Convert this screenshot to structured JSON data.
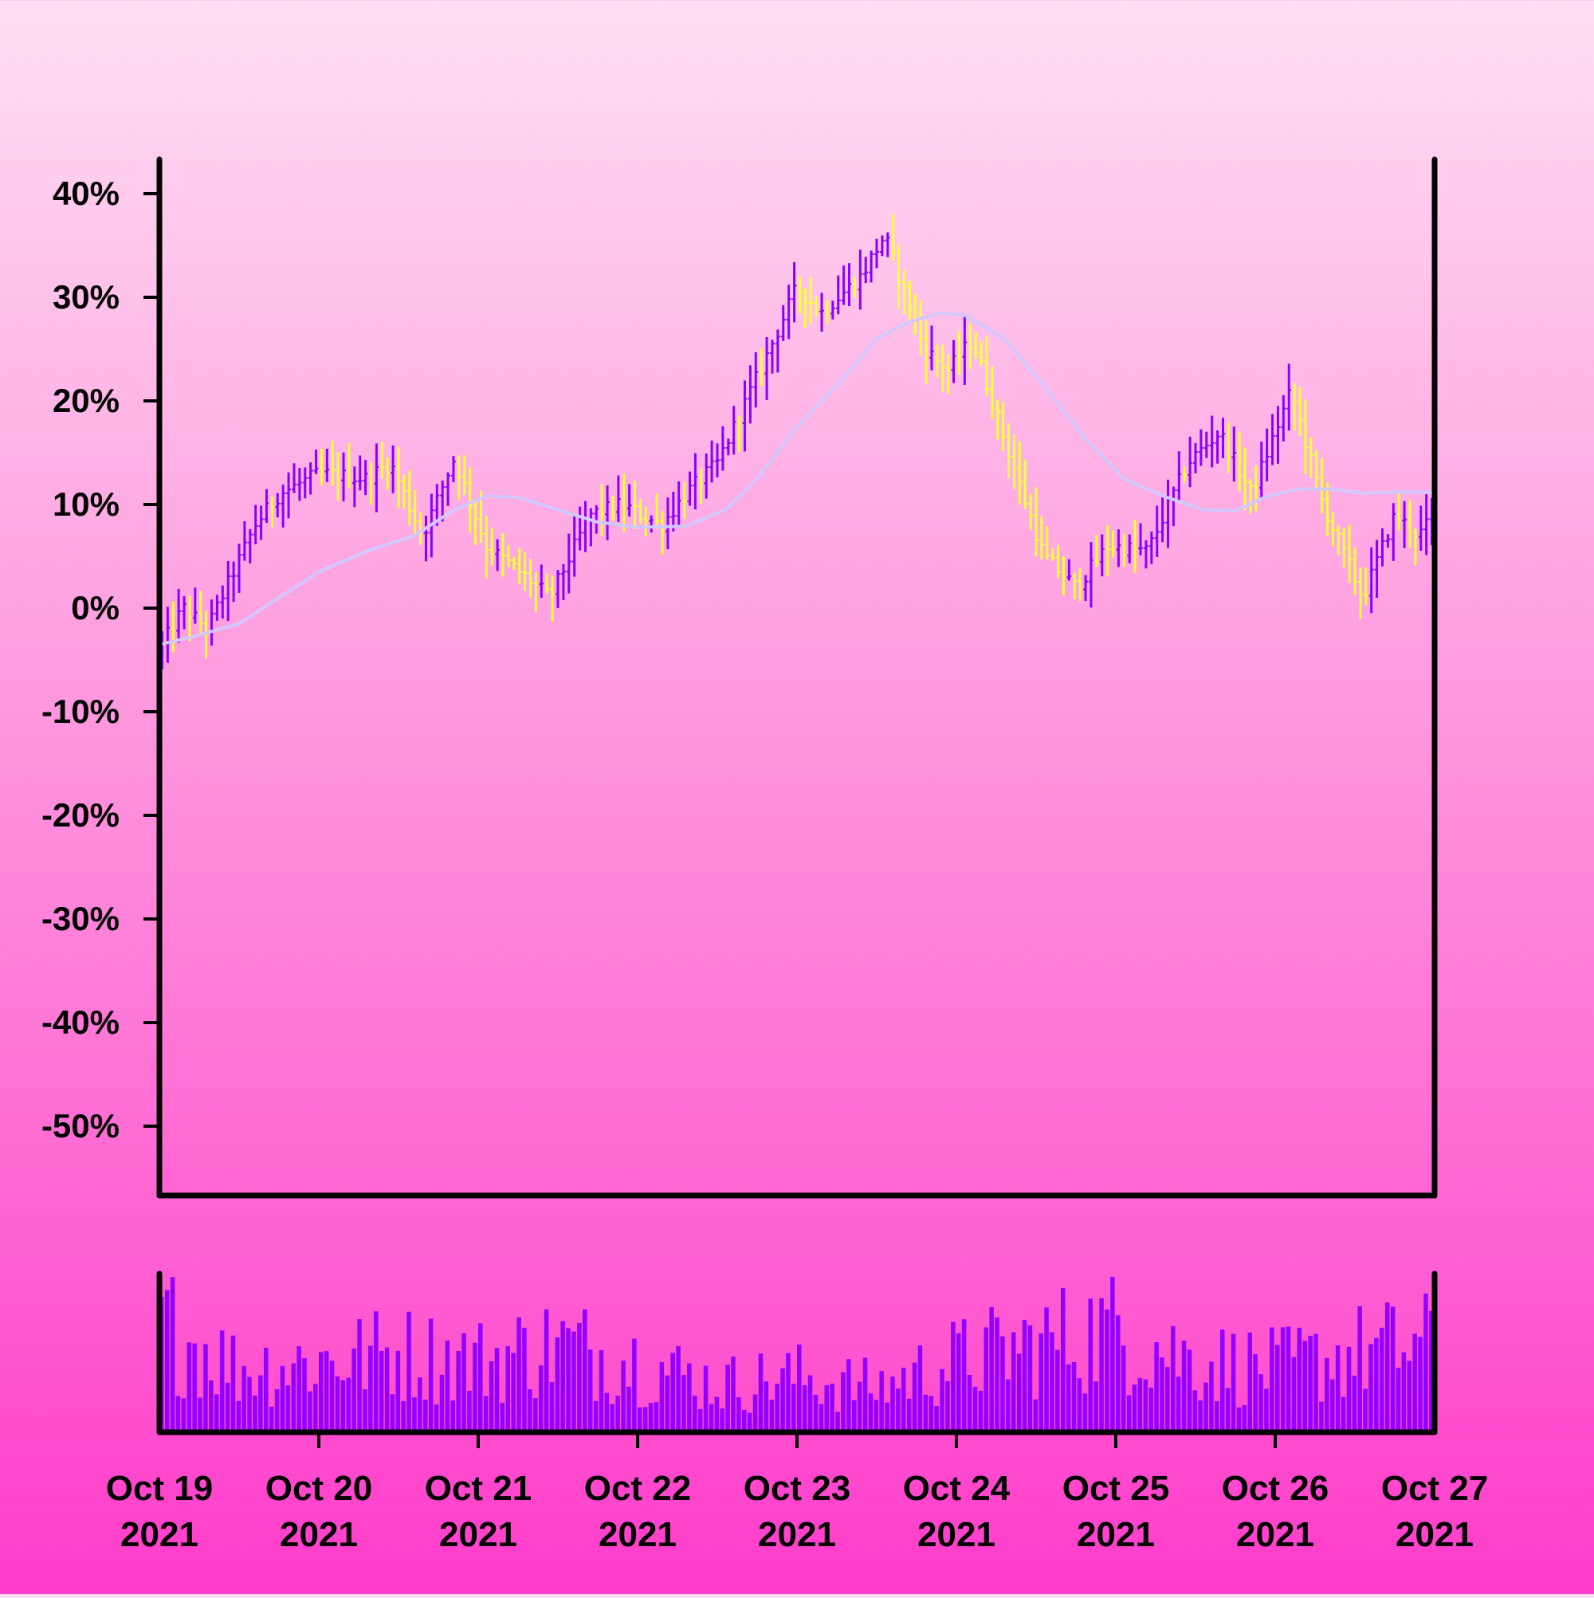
{
  "chart_data": {
    "type": "ohlc",
    "title": "",
    "xlabel": "",
    "ylabel": "",
    "ylim": [
      -55,
      40
    ],
    "y_ticks": [
      "40%",
      "30%",
      "20%",
      "10%",
      "0%",
      "-10%",
      "-20%",
      "-30%",
      "-40%",
      "-50%"
    ],
    "x_ticks": [
      {
        "line1": "Oct 19",
        "line2": "2021"
      },
      {
        "line1": "Oct 20",
        "line2": "2021"
      },
      {
        "line1": "Oct 21",
        "line2": "2021"
      },
      {
        "line1": "Oct 22",
        "line2": "2021"
      },
      {
        "line1": "Oct 23",
        "line2": "2021"
      },
      {
        "line1": "Oct 24",
        "line2": "2021"
      },
      {
        "line1": "Oct 25",
        "line2": "2021"
      },
      {
        "line1": "Oct 26",
        "line2": "2021"
      },
      {
        "line1": "Oct 27",
        "line2": "2021"
      }
    ],
    "x_range": [
      "2021-10-19",
      "2021-10-27"
    ],
    "bars_per_day": 29,
    "close_path": [
      [
        0,
        -4
      ],
      [
        0.15,
        0
      ],
      [
        0.3,
        -2
      ],
      [
        0.45,
        3
      ],
      [
        0.6,
        8
      ],
      [
        0.75,
        11
      ],
      [
        1.0,
        13
      ],
      [
        1.3,
        12.5
      ],
      [
        1.45,
        14
      ],
      [
        1.65,
        7
      ],
      [
        1.85,
        14.5
      ],
      [
        2.05,
        6
      ],
      [
        2.3,
        3
      ],
      [
        2.45,
        1
      ],
      [
        2.7,
        9
      ],
      [
        2.9,
        10
      ],
      [
        3.15,
        8
      ],
      [
        3.3,
        11
      ],
      [
        3.5,
        14
      ],
      [
        3.8,
        24
      ],
      [
        4.0,
        31
      ],
      [
        4.15,
        28.5
      ],
      [
        4.4,
        32
      ],
      [
        4.55,
        36
      ],
      [
        4.8,
        25
      ],
      [
        4.95,
        23
      ],
      [
        5.1,
        26
      ],
      [
        5.35,
        14
      ],
      [
        5.55,
        5
      ],
      [
        5.75,
        2
      ],
      [
        5.95,
        6
      ],
      [
        6.2,
        5.5
      ],
      [
        6.45,
        14
      ],
      [
        6.65,
        17
      ],
      [
        6.85,
        11
      ],
      [
        7.1,
        21
      ],
      [
        7.3,
        10
      ],
      [
        7.55,
        1
      ],
      [
        7.75,
        9
      ],
      [
        7.9,
        7
      ],
      [
        8.0,
        9
      ]
    ],
    "moving_average": [
      [
        0,
        -3.5
      ],
      [
        0.2,
        -2.8
      ],
      [
        0.5,
        -1.5
      ],
      [
        0.7,
        0.5
      ],
      [
        1.0,
        3.5
      ],
      [
        1.3,
        5.5
      ],
      [
        1.6,
        7
      ],
      [
        1.85,
        9.5
      ],
      [
        2.05,
        10.8
      ],
      [
        2.25,
        10.7
      ],
      [
        2.5,
        9.5
      ],
      [
        2.75,
        8.3
      ],
      [
        3.0,
        7.8
      ],
      [
        3.3,
        7.9
      ],
      [
        3.55,
        9.5
      ],
      [
        3.75,
        12.5
      ],
      [
        4.0,
        17.5
      ],
      [
        4.25,
        21.5
      ],
      [
        4.5,
        26
      ],
      [
        4.7,
        27.6
      ],
      [
        4.9,
        28.5
      ],
      [
        5.05,
        28.3
      ],
      [
        5.3,
        26
      ],
      [
        5.55,
        21.5
      ],
      [
        5.8,
        16.5
      ],
      [
        6.05,
        12.5
      ],
      [
        6.3,
        10.8
      ],
      [
        6.55,
        9.5
      ],
      [
        6.75,
        9.4
      ],
      [
        6.95,
        10.8
      ],
      [
        7.15,
        11.5
      ],
      [
        7.35,
        11.5
      ],
      [
        7.55,
        11.1
      ],
      [
        7.75,
        11.2
      ],
      [
        8.0,
        11.2
      ]
    ],
    "volume_profile": [
      [
        0,
        0.7
      ],
      [
        0.5,
        0.4
      ],
      [
        1.0,
        0.45
      ],
      [
        1.5,
        0.5
      ],
      [
        2.0,
        0.45
      ],
      [
        2.5,
        0.55
      ],
      [
        3.0,
        0.45
      ],
      [
        3.5,
        0.3
      ],
      [
        4.0,
        0.35
      ],
      [
        4.5,
        0.28
      ],
      [
        5.0,
        0.45
      ],
      [
        5.5,
        0.55
      ],
      [
        6.0,
        0.65
      ],
      [
        6.5,
        0.45
      ],
      [
        7.0,
        0.4
      ],
      [
        7.5,
        0.5
      ],
      [
        8.0,
        0.55
      ]
    ],
    "colors": {
      "up": "#8a00ff",
      "down": "#ffff3c",
      "moving_average": "#d2c8ff",
      "volume": "#9400ff",
      "axis": "#000000"
    },
    "grid": false,
    "legend": "none"
  }
}
